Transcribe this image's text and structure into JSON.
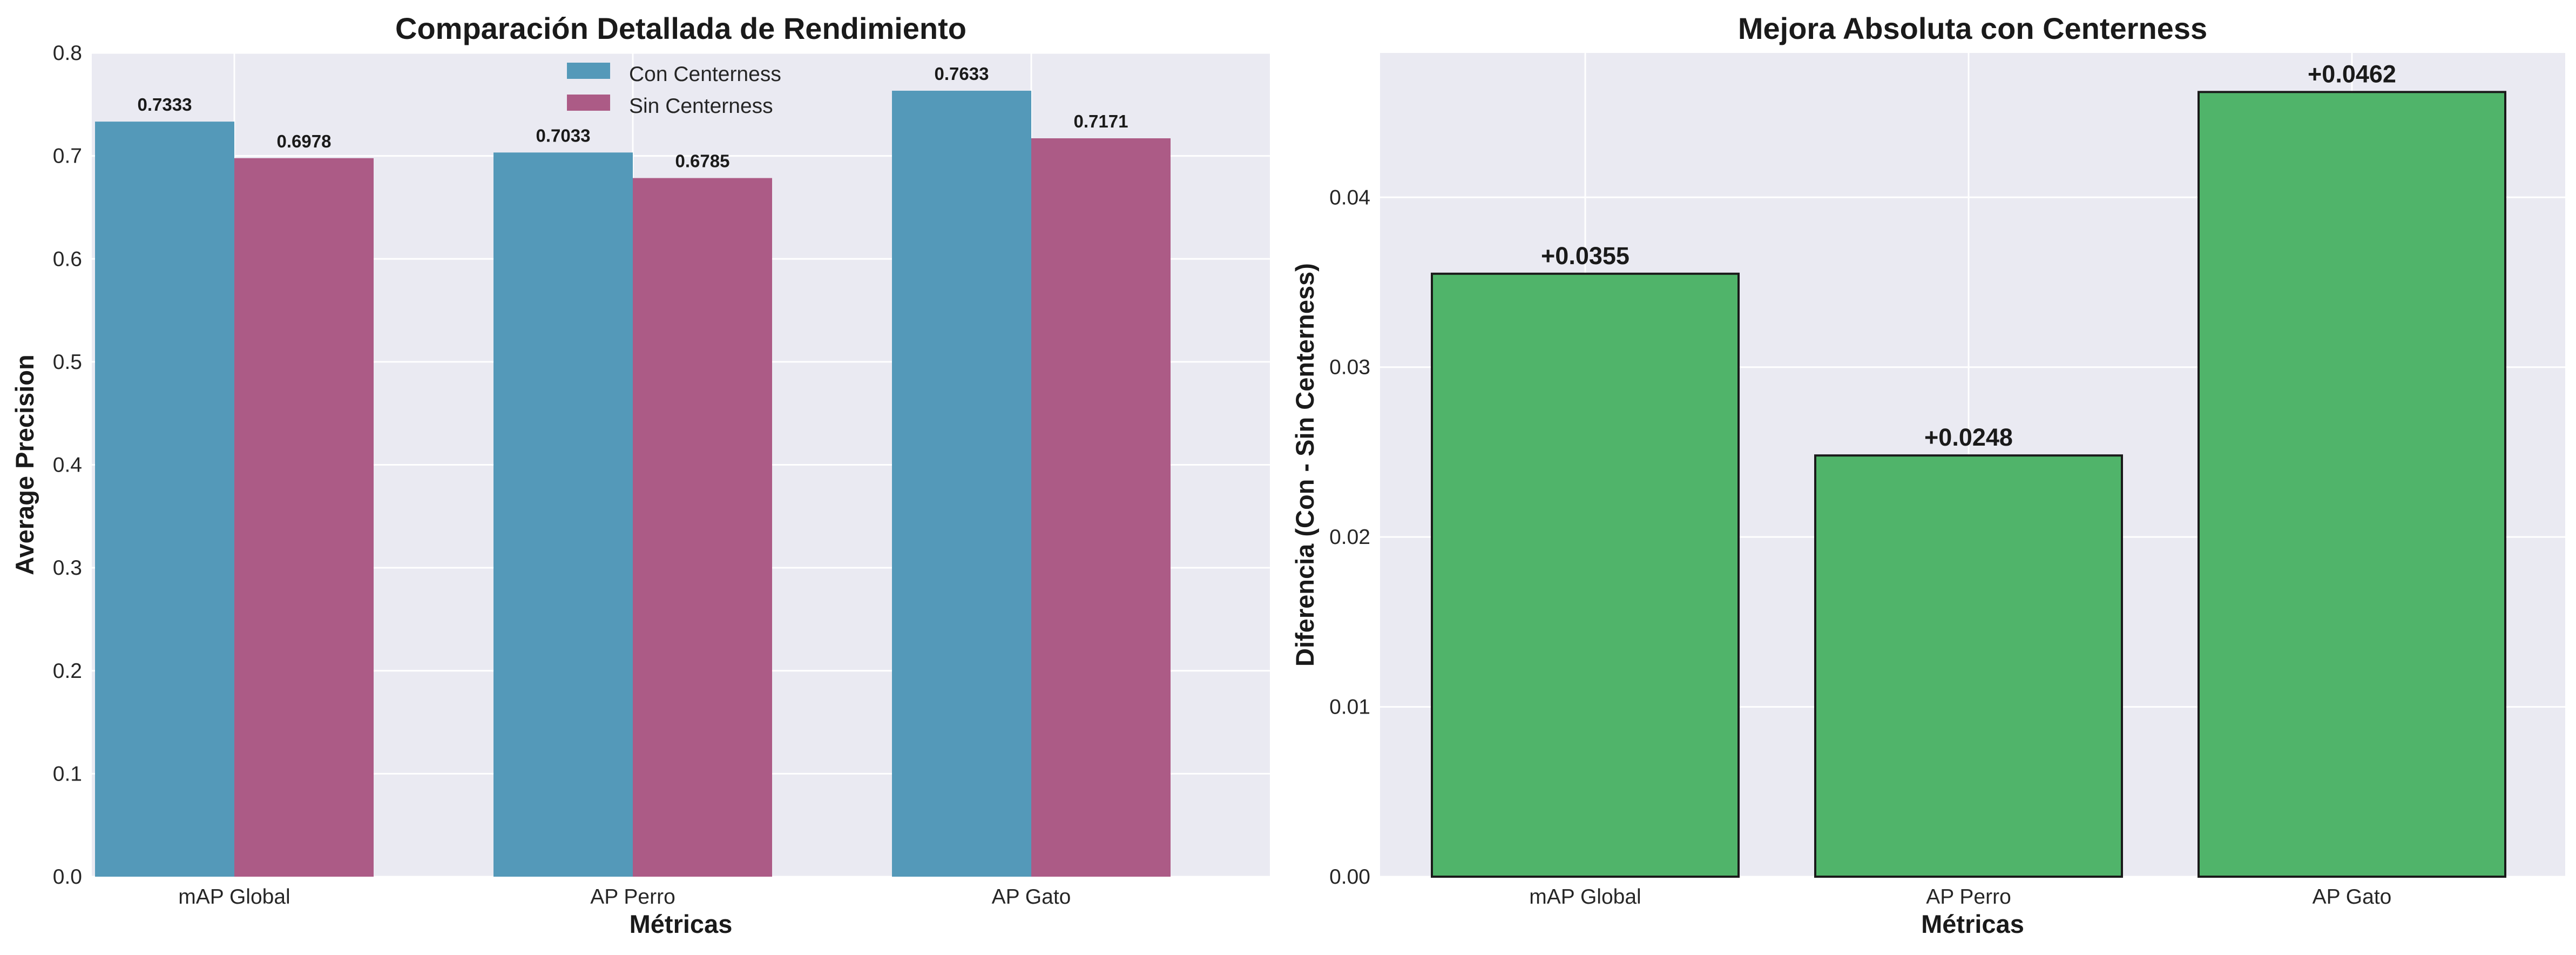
{
  "chart_data": [
    {
      "type": "bar",
      "title": "Comparación Detallada de Rendimiento",
      "xlabel": "Métricas",
      "ylabel": "Average Precision",
      "categories": [
        "mAP Global",
        "AP Perro",
        "AP Gato"
      ],
      "ylim": [
        0,
        0.8
      ],
      "yticks": [
        "0.0",
        "0.1",
        "0.2",
        "0.3",
        "0.4",
        "0.5",
        "0.6",
        "0.7",
        "0.8"
      ],
      "grid": true,
      "legend_position": "top-center",
      "series": [
        {
          "name": "Con Centerness",
          "color": "#5499b9",
          "values": [
            0.7333,
            0.7033,
            0.7633
          ],
          "labels": [
            "0.7333",
            "0.7033",
            "0.7633"
          ]
        },
        {
          "name": "Sin Centerness",
          "color": "#ac5b86",
          "values": [
            0.6978,
            0.6785,
            0.7171
          ],
          "labels": [
            "0.6978",
            "0.6785",
            "0.7171"
          ]
        }
      ]
    },
    {
      "type": "bar",
      "title": "Mejora Absoluta con Centerness",
      "xlabel": "Métricas",
      "ylabel": "Diferencia (Con - Sin Centerness)",
      "categories": [
        "mAP Global",
        "AP Perro",
        "AP Gato"
      ],
      "ylim": [
        0,
        0.0485
      ],
      "yticks": [
        "0.00",
        "0.01",
        "0.02",
        "0.03",
        "0.04"
      ],
      "grid": true,
      "color": "#50b46a",
      "edge_color": "#1a1a1a",
      "values": [
        0.0355,
        0.0248,
        0.0462
      ],
      "labels": [
        "+0.0355",
        "+0.0248",
        "+0.0462"
      ]
    }
  ]
}
